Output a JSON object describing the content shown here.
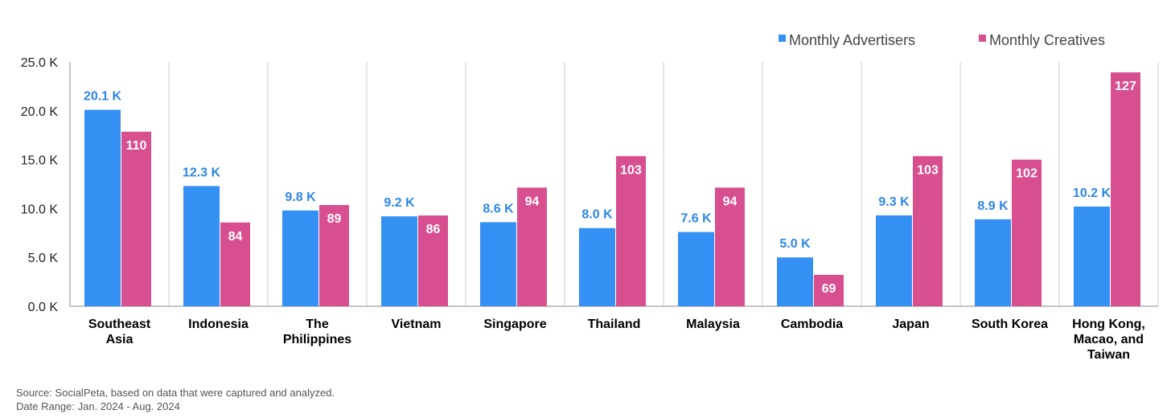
{
  "colors": {
    "advertisers": "#3590f3",
    "creatives": "#d74f8f",
    "advertiser_label": "#2e86e8",
    "grid": "#cccccc",
    "axis": "#888888"
  },
  "chart_data": {
    "type": "bar",
    "categories": [
      [
        "Southeast",
        "Asia"
      ],
      [
        "Indonesia"
      ],
      [
        "The",
        "Philippines"
      ],
      [
        "Vietnam"
      ],
      [
        "Singapore"
      ],
      [
        "Thailand"
      ],
      [
        "Malaysia"
      ],
      [
        "Cambodia"
      ],
      [
        "Japan"
      ],
      [
        "South Korea"
      ],
      [
        "Hong Kong,",
        "Macao, and",
        "Taiwan"
      ]
    ],
    "series": [
      {
        "name": "Monthly Advertisers",
        "values": [
          20.1,
          12.3,
          9.8,
          9.2,
          8.6,
          8.0,
          7.6,
          5.0,
          9.3,
          8.9,
          10.2
        ],
        "labels": [
          "20.1 K",
          "12.3 K",
          "9.8 K",
          "9.2 K",
          "8.6 K",
          "8.0 K",
          "7.6 K",
          "5.0 K",
          "9.3 K",
          "8.9 K",
          "10.2 K"
        ]
      },
      {
        "name": "Monthly Creatives",
        "values": [
          110,
          84,
          89,
          86,
          94,
          103,
          94,
          69,
          103,
          102,
          127
        ],
        "labels": [
          "110",
          "84",
          "89",
          "86",
          "94",
          "103",
          "94",
          "69",
          "103",
          "102",
          "127"
        ]
      }
    ],
    "y_ticks": [
      "0.0 K",
      "5.0 K",
      "10.0 K",
      "15.0 K",
      "20.0 K",
      "25.0 K"
    ],
    "ylim": [
      0,
      25
    ],
    "secondary_ylim": [
      60,
      130
    ],
    "legend_position": "top-right",
    "grid": "vertical separators"
  },
  "footer": {
    "source": "Source: SocialPeta, based on data that were captured and analyzed.",
    "date_range": "Date Range: Jan. 2024 - Aug. 2024"
  }
}
